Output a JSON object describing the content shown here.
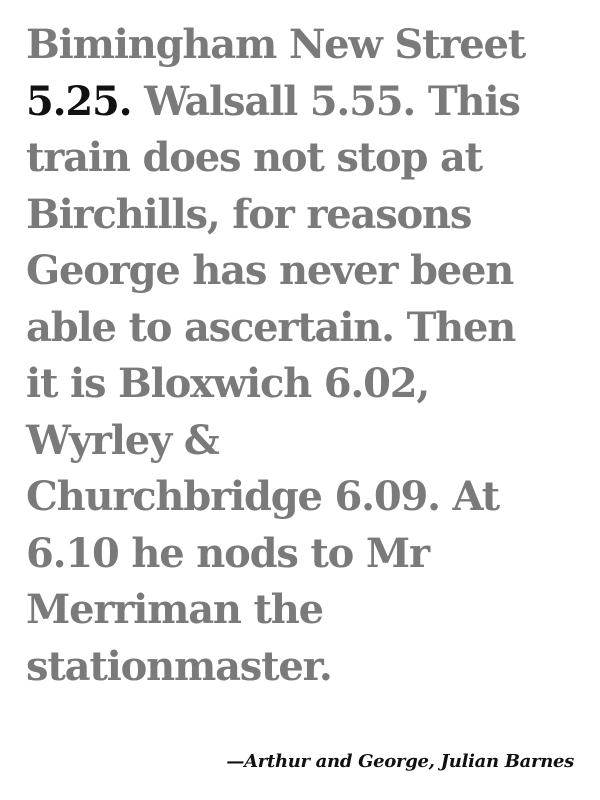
{
  "quote": {
    "lines": [
      {
        "text": "Bimingham New Street"
      },
      {
        "highlight": "5.25.",
        "text": " Walsall 5.55. This"
      },
      {
        "text": "train does not stop at"
      },
      {
        "text": "Birchills, for reasons"
      },
      {
        "text": "George has never been"
      },
      {
        "text": "able to ascertain. Then"
      },
      {
        "text": "it is Bloxwich 6.02,"
      },
      {
        "text": "Wyrley &"
      },
      {
        "text": "Churchbridge 6.09. At"
      },
      {
        "text": "6.10 he nods to Mr"
      },
      {
        "text": "Merriman the"
      },
      {
        "text": "stationmaster."
      }
    ],
    "text_color": "#7a7a7a",
    "highlight_color": "#111111"
  },
  "attribution": {
    "text": "—Arthur and George, Julian Barnes"
  }
}
